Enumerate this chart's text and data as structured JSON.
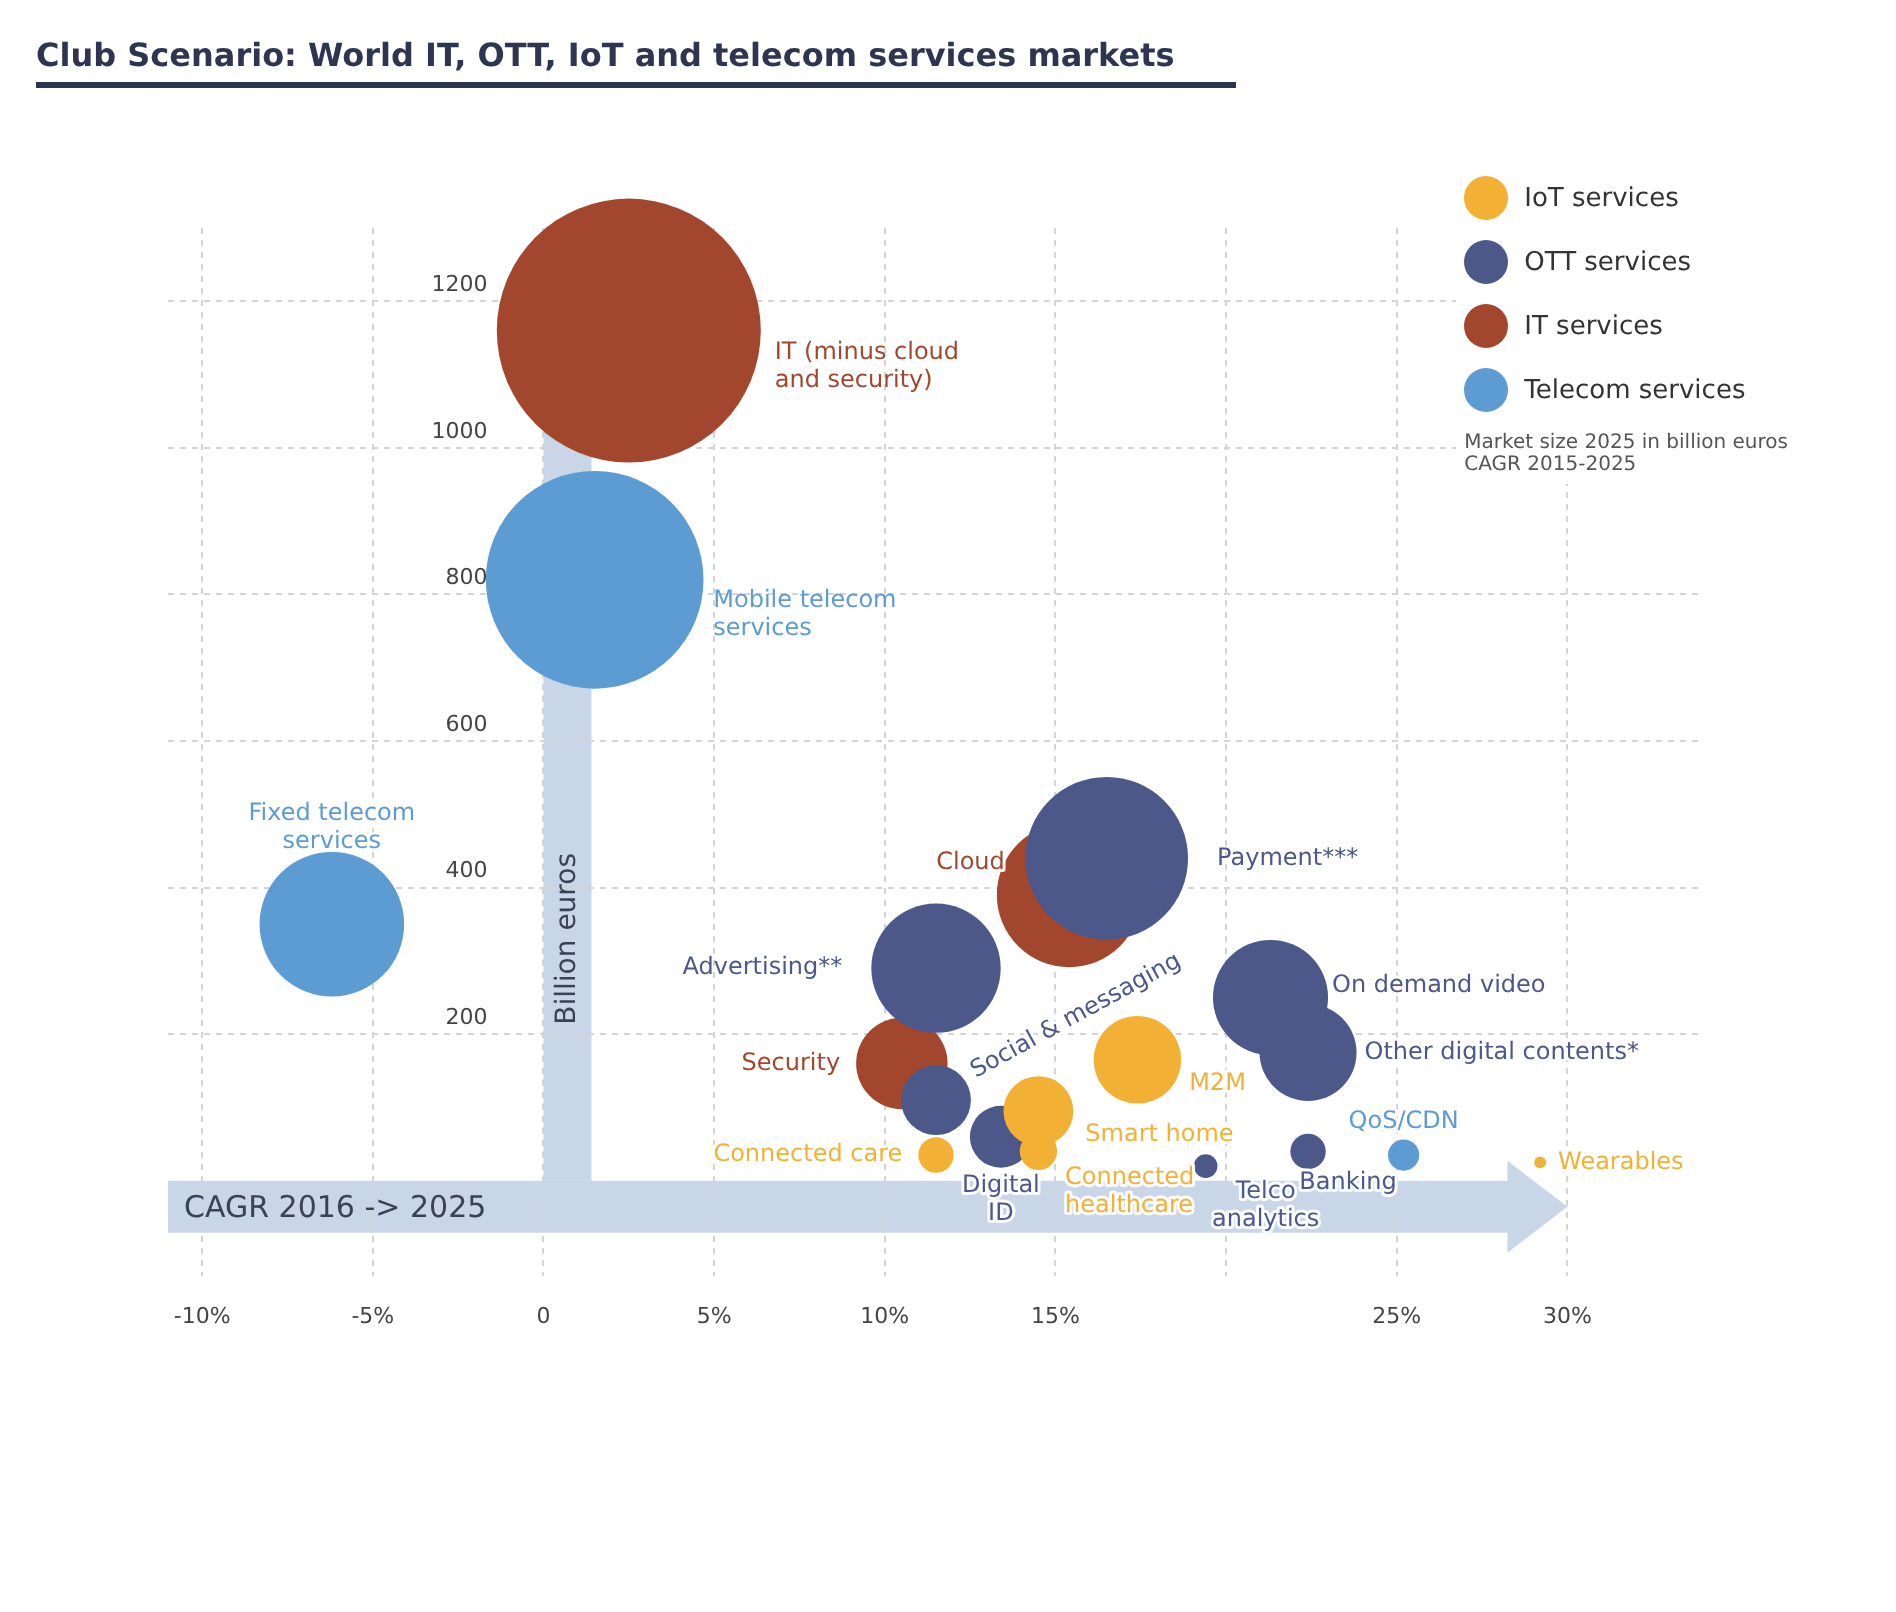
{
  "chart_data": {
    "type": "bubble",
    "title": "Club Scenario: World IT, OTT, IoT and telecom services markets",
    "xlabel": "CAGR 2016 -> 2025",
    "ylabel": "Billion euros",
    "xlim": [
      -11,
      34
    ],
    "ylim": [
      -130,
      1300
    ],
    "xticks": [
      {
        "value": -10,
        "label": "-10%"
      },
      {
        "value": -5,
        "label": "-5%"
      },
      0,
      {
        "value": 5,
        "label": "5%"
      },
      {
        "value": 10,
        "label": "10%"
      },
      {
        "value": 15,
        "label": "15%"
      },
      {
        "value": 20,
        "label": null
      },
      {
        "value": 25,
        "label": "25%"
      },
      {
        "value": 30,
        "label": "30%"
      }
    ],
    "yticks": [
      200,
      400,
      600,
      800,
      1000,
      1200
    ],
    "grid": true,
    "legend": "top right",
    "series": [
      {
        "name": "IoT services",
        "color": "#f2b134",
        "x": [
          17.4,
          14.5,
          14.5,
          11.5,
          29.2
        ],
        "values": [
          165,
          95,
          40,
          35,
          25
        ],
        "sizes": [
          0.11,
          0.07,
          0.02,
          0.018,
          0.002
        ]
      },
      {
        "name": "OTT services",
        "color": "#4b5889",
        "x": [
          11.5,
          16.5,
          11.5,
          13.4,
          19.4,
          22.4,
          21.3,
          22.4
        ],
        "values": [
          290,
          440,
          110,
          60,
          20,
          40,
          250,
          175
        ],
        "sizes": [
          0.24,
          0.38,
          0.07,
          0.055,
          0.008,
          0.018,
          0.19,
          0.135
        ]
      },
      {
        "name": "IT services",
        "color": "#a2472d",
        "x": [
          2.5,
          15.4,
          10.5
        ],
        "values": [
          1160,
          390,
          160
        ],
        "sizes": [
          1,
          0.3,
          0.12
        ]
      },
      {
        "name": "Telecom services",
        "color": "#5d9bd3",
        "x": [
          1.5,
          -6.2,
          25.2
        ],
        "values": [
          820,
          350,
          35
        ],
        "sizes": [
          0.68,
          0.3,
          0.014
        ]
      }
    ],
    "annotations": [
      "IT (minus cloud\nand security)",
      "Mobile telecom\nservices",
      {
        "text": "Fixed telecom\nservices",
        "x": -6.2,
        "y": 350
      },
      {
        "text": "Cloud",
        "x": 15.4,
        "y": 390
      },
      "Payment***",
      "Advertising**",
      {
        "text": "Security",
        "x": 10.5,
        "y": 160
      },
      {
        "text": "Social & messaging",
        "x": 11.5,
        "y": 110
      },
      {
        "text": "M2M",
        "x": 17.4,
        "y": 165
      },
      {
        "text": "Smart home",
        "x": 14.5,
        "y": 95
      },
      {
        "text": "Connected\nhealthcare",
        "x": 14.5,
        "y": 40
      },
      {
        "text": "Connected care",
        "x": 11.5,
        "y": 35
      },
      {
        "text": "Digital\nID",
        "x": 13.4,
        "y": 60
      },
      {
        "text": "Telco\nanalytics",
        "x": 19.4,
        "y": 20
      },
      {
        "text": "Banking",
        "x": 22.4,
        "y": 40
      },
      {
        "text": "QoS/CDN",
        "x": 25.2,
        "y": 35
      },
      {
        "text": "Wearables",
        "x": 29.2,
        "y": 25
      },
      {
        "text": "On demand video",
        "x": 21.3,
        "y": 250
      },
      {
        "text": "Other digital contents*",
        "x": 22.4,
        "y": 175
      },
      "Market size 2025 in billion euros",
      "CAGR 2015-2025"
    ]
  }
}
